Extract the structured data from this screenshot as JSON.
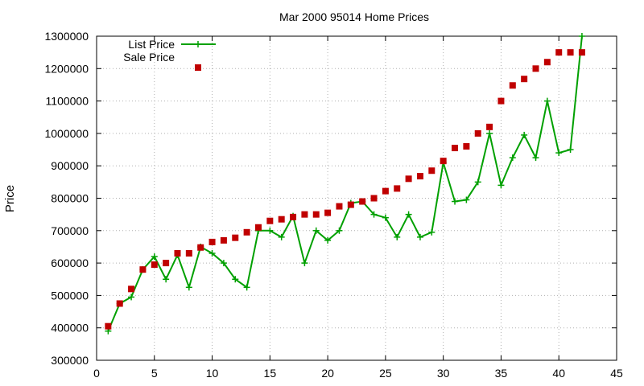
{
  "chart_data": {
    "type": "line",
    "title": "Mar 2000 95014 Home Prices",
    "xlabel": "",
    "ylabel": "Price",
    "xlim": [
      0,
      45
    ],
    "ylim": [
      300000,
      1300000
    ],
    "xticks": [
      "0",
      "5",
      "10",
      "15",
      "20",
      "25",
      "30",
      "35",
      "40",
      "45"
    ],
    "yticks": [
      "300000",
      "400000",
      "500000",
      "600000",
      "700000",
      "800000",
      "900000",
      "1000000",
      "1100000",
      "1200000",
      "1300000"
    ],
    "grid": true,
    "legend": "top-left",
    "series": [
      {
        "name": "List Price",
        "style": "line-plus",
        "color": "#00a000",
        "x": [
          1,
          2,
          3,
          4,
          5,
          6,
          7,
          8,
          9,
          10,
          11,
          12,
          13,
          14,
          15,
          16,
          17,
          18,
          19,
          20,
          21,
          22,
          23,
          24,
          25,
          26,
          27,
          28,
          29,
          30,
          31,
          32,
          33,
          34,
          35,
          36,
          37,
          38,
          39,
          40,
          41,
          42
        ],
        "y": [
          390000,
          475000,
          495000,
          580000,
          620000,
          550000,
          625000,
          525000,
          650000,
          630000,
          600000,
          550000,
          525000,
          700000,
          700000,
          680000,
          745000,
          600000,
          700000,
          670000,
          700000,
          785000,
          790000,
          750000,
          740000,
          680000,
          750000,
          680000,
          695000,
          910000,
          790000,
          795000,
          850000,
          1000000,
          840000,
          925000,
          995000,
          925000,
          1100000,
          940000,
          950000,
          1300000
        ]
      },
      {
        "name": "Sale Price",
        "style": "square-markers",
        "color": "#c00000",
        "x": [
          1,
          2,
          3,
          4,
          5,
          6,
          7,
          8,
          9,
          10,
          11,
          12,
          13,
          14,
          15,
          16,
          17,
          18,
          19,
          20,
          21,
          22,
          23,
          24,
          25,
          26,
          27,
          28,
          29,
          30,
          31,
          32,
          33,
          34,
          35,
          36,
          37,
          38,
          39,
          40,
          41,
          42
        ],
        "y": [
          405000,
          475000,
          520000,
          580000,
          595000,
          600000,
          630000,
          630000,
          648000,
          665000,
          670000,
          678000,
          695000,
          710000,
          730000,
          735000,
          742000,
          750000,
          750000,
          755000,
          775000,
          780000,
          790000,
          800000,
          822000,
          830000,
          860000,
          868000,
          885000,
          915000,
          955000,
          960000,
          1000000,
          1020000,
          1100000,
          1148000,
          1168000,
          1200000,
          1220000,
          1250000,
          1250000,
          1250000
        ]
      }
    ]
  }
}
